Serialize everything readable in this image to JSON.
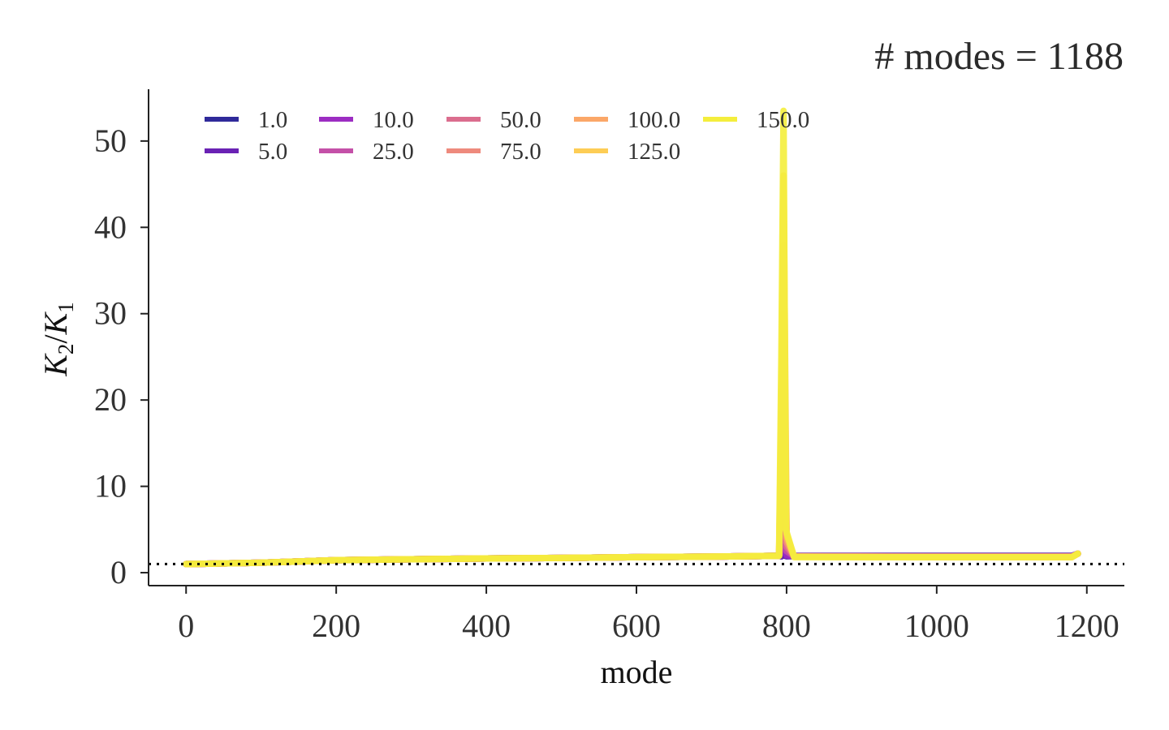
{
  "chart_data": {
    "type": "line",
    "title": "# modes = 1188",
    "xlabel": "mode",
    "ylabel": "K_2/K_1",
    "ylabel_parts": {
      "main": "K",
      "sub1": "2",
      "slash": "/",
      "main2": "K",
      "sub2": "1"
    },
    "xlim": [
      -50,
      1250
    ],
    "ylim": [
      -1.5,
      56
    ],
    "x_ticks": [
      0,
      200,
      400,
      600,
      800,
      1000,
      1200
    ],
    "y_ticks": [
      0,
      10,
      20,
      30,
      40,
      50
    ],
    "x_tick_labels": [
      "0",
      "200",
      "400",
      "600",
      "800",
      "1000",
      "1200"
    ],
    "y_tick_labels": [
      "0",
      "10",
      "20",
      "30",
      "40",
      "50"
    ],
    "reference_line": {
      "y": 1.0,
      "style": "dotted",
      "color": "#000000"
    },
    "grid": false,
    "legend_position": "top",
    "series": [
      {
        "name": "1.0",
        "color": "#2f2a9a",
        "values": [
          [
            0,
            1.0
          ],
          [
            100,
            1.15
          ],
          [
            200,
            1.45
          ],
          [
            300,
            1.55
          ],
          [
            400,
            1.65
          ],
          [
            500,
            1.7
          ],
          [
            600,
            1.8
          ],
          [
            700,
            1.85
          ],
          [
            790,
            1.95
          ],
          [
            793,
            1.9
          ],
          [
            796,
            2.0
          ],
          [
            800,
            1.9
          ],
          [
            810,
            1.95
          ],
          [
            900,
            1.95
          ],
          [
            1000,
            1.95
          ],
          [
            1100,
            1.95
          ],
          [
            1180,
            1.95
          ],
          [
            1188,
            2.2
          ]
        ]
      },
      {
        "name": "5.0",
        "color": "#6a22b4",
        "values": [
          [
            0,
            1.0
          ],
          [
            100,
            1.15
          ],
          [
            200,
            1.45
          ],
          [
            300,
            1.55
          ],
          [
            400,
            1.65
          ],
          [
            500,
            1.7
          ],
          [
            600,
            1.8
          ],
          [
            700,
            1.85
          ],
          [
            790,
            1.95
          ],
          [
            793,
            1.9
          ],
          [
            796,
            2.5
          ],
          [
            800,
            1.9
          ],
          [
            810,
            1.9
          ],
          [
            900,
            1.9
          ],
          [
            1000,
            1.9
          ],
          [
            1100,
            1.9
          ],
          [
            1180,
            1.9
          ],
          [
            1188,
            2.2
          ]
        ]
      },
      {
        "name": "10.0",
        "color": "#9c2dc2",
        "values": [
          [
            0,
            1.0
          ],
          [
            100,
            1.15
          ],
          [
            200,
            1.45
          ],
          [
            300,
            1.55
          ],
          [
            400,
            1.65
          ],
          [
            500,
            1.7
          ],
          [
            600,
            1.8
          ],
          [
            700,
            1.85
          ],
          [
            790,
            1.95
          ],
          [
            793,
            2.5
          ],
          [
            796,
            4.0
          ],
          [
            800,
            2.0
          ],
          [
            810,
            1.9
          ],
          [
            900,
            1.9
          ],
          [
            1000,
            1.9
          ],
          [
            1100,
            1.9
          ],
          [
            1180,
            1.9
          ],
          [
            1188,
            2.2
          ]
        ]
      },
      {
        "name": "25.0",
        "color": "#c450a8",
        "values": [
          [
            0,
            1.0
          ],
          [
            100,
            1.15
          ],
          [
            200,
            1.45
          ],
          [
            300,
            1.55
          ],
          [
            400,
            1.65
          ],
          [
            500,
            1.7
          ],
          [
            600,
            1.8
          ],
          [
            700,
            1.85
          ],
          [
            790,
            1.95
          ],
          [
            793,
            4.0
          ],
          [
            796,
            10.0
          ],
          [
            800,
            2.5
          ],
          [
            810,
            1.9
          ],
          [
            900,
            1.9
          ],
          [
            1000,
            1.85
          ],
          [
            1100,
            1.85
          ],
          [
            1180,
            1.85
          ],
          [
            1188,
            2.2
          ]
        ]
      },
      {
        "name": "50.0",
        "color": "#db6d8e",
        "values": [
          [
            0,
            1.0
          ],
          [
            100,
            1.15
          ],
          [
            200,
            1.45
          ],
          [
            300,
            1.55
          ],
          [
            400,
            1.65
          ],
          [
            500,
            1.7
          ],
          [
            600,
            1.8
          ],
          [
            700,
            1.85
          ],
          [
            790,
            1.95
          ],
          [
            793,
            8.0
          ],
          [
            796,
            20.0
          ],
          [
            800,
            3.0
          ],
          [
            810,
            1.9
          ],
          [
            900,
            1.85
          ],
          [
            1000,
            1.85
          ],
          [
            1100,
            1.85
          ],
          [
            1180,
            1.85
          ],
          [
            1188,
            2.2
          ]
        ]
      },
      {
        "name": "75.0",
        "color": "#ee8a7d",
        "values": [
          [
            0,
            1.0
          ],
          [
            100,
            1.15
          ],
          [
            200,
            1.45
          ],
          [
            300,
            1.55
          ],
          [
            400,
            1.65
          ],
          [
            500,
            1.7
          ],
          [
            600,
            1.8
          ],
          [
            700,
            1.85
          ],
          [
            790,
            1.95
          ],
          [
            793,
            12.0
          ],
          [
            796,
            30.0
          ],
          [
            800,
            3.5
          ],
          [
            810,
            1.85
          ],
          [
            900,
            1.85
          ],
          [
            1000,
            1.85
          ],
          [
            1100,
            1.85
          ],
          [
            1180,
            1.85
          ],
          [
            1188,
            2.2
          ]
        ]
      },
      {
        "name": "100.0",
        "color": "#fba768",
        "values": [
          [
            0,
            1.0
          ],
          [
            100,
            1.15
          ],
          [
            200,
            1.45
          ],
          [
            300,
            1.55
          ],
          [
            400,
            1.65
          ],
          [
            500,
            1.7
          ],
          [
            600,
            1.8
          ],
          [
            700,
            1.85
          ],
          [
            790,
            1.95
          ],
          [
            793,
            16.0
          ],
          [
            796,
            38.0
          ],
          [
            800,
            4.0
          ],
          [
            810,
            1.85
          ],
          [
            900,
            1.85
          ],
          [
            1000,
            1.8
          ],
          [
            1100,
            1.8
          ],
          [
            1180,
            1.8
          ],
          [
            1188,
            2.2
          ]
        ]
      },
      {
        "name": "125.0",
        "color": "#fdcd55",
        "values": [
          [
            0,
            1.0
          ],
          [
            100,
            1.15
          ],
          [
            200,
            1.45
          ],
          [
            300,
            1.55
          ],
          [
            400,
            1.65
          ],
          [
            500,
            1.7
          ],
          [
            600,
            1.8
          ],
          [
            700,
            1.85
          ],
          [
            790,
            1.95
          ],
          [
            793,
            20.0
          ],
          [
            796,
            46.0
          ],
          [
            800,
            4.5
          ],
          [
            810,
            1.85
          ],
          [
            900,
            1.8
          ],
          [
            1000,
            1.8
          ],
          [
            1100,
            1.8
          ],
          [
            1180,
            1.8
          ],
          [
            1188,
            2.2
          ]
        ]
      },
      {
        "name": "150.0",
        "color": "#f4ee3c",
        "values": [
          [
            0,
            1.0
          ],
          [
            100,
            1.15
          ],
          [
            200,
            1.45
          ],
          [
            300,
            1.55
          ],
          [
            400,
            1.65
          ],
          [
            500,
            1.7
          ],
          [
            600,
            1.8
          ],
          [
            700,
            1.85
          ],
          [
            790,
            1.95
          ],
          [
            793,
            25.0
          ],
          [
            796,
            53.5
          ],
          [
            799,
            5.0
          ],
          [
            810,
            1.8
          ],
          [
            900,
            1.8
          ],
          [
            1000,
            1.8
          ],
          [
            1100,
            1.8
          ],
          [
            1180,
            1.8
          ],
          [
            1188,
            2.2
          ]
        ]
      }
    ]
  }
}
